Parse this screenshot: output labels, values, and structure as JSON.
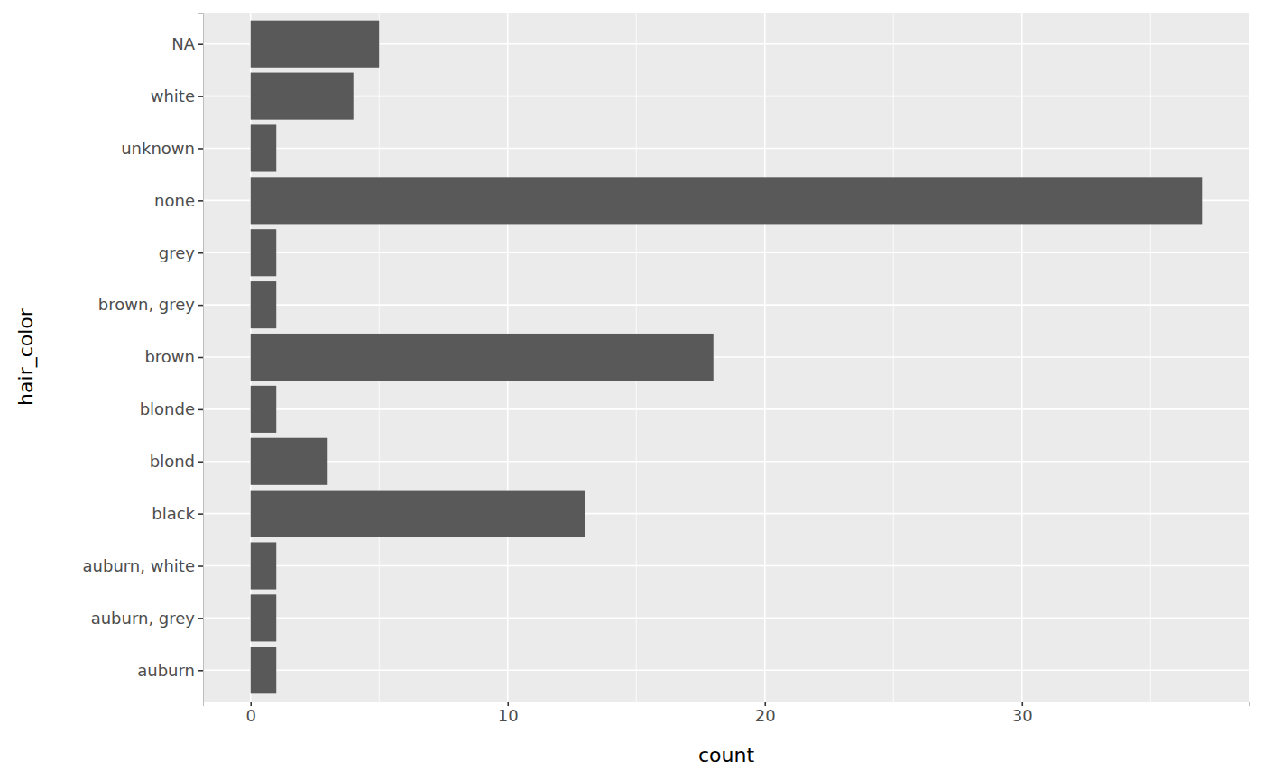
{
  "chart_data": {
    "type": "bar",
    "orientation": "horizontal",
    "x_label": "count",
    "y_label": "hair_color",
    "categories": [
      "auburn",
      "auburn, grey",
      "auburn, white",
      "black",
      "blond",
      "blonde",
      "brown",
      "brown, grey",
      "grey",
      "none",
      "unknown",
      "white",
      "NA"
    ],
    "values": [
      1,
      1,
      1,
      13,
      3,
      1,
      18,
      1,
      1,
      37,
      1,
      4,
      5
    ],
    "color": "#595959",
    "xlim": [
      -1.85,
      38.85
    ],
    "xticks": [
      0,
      10,
      20,
      30
    ],
    "grid": true
  }
}
